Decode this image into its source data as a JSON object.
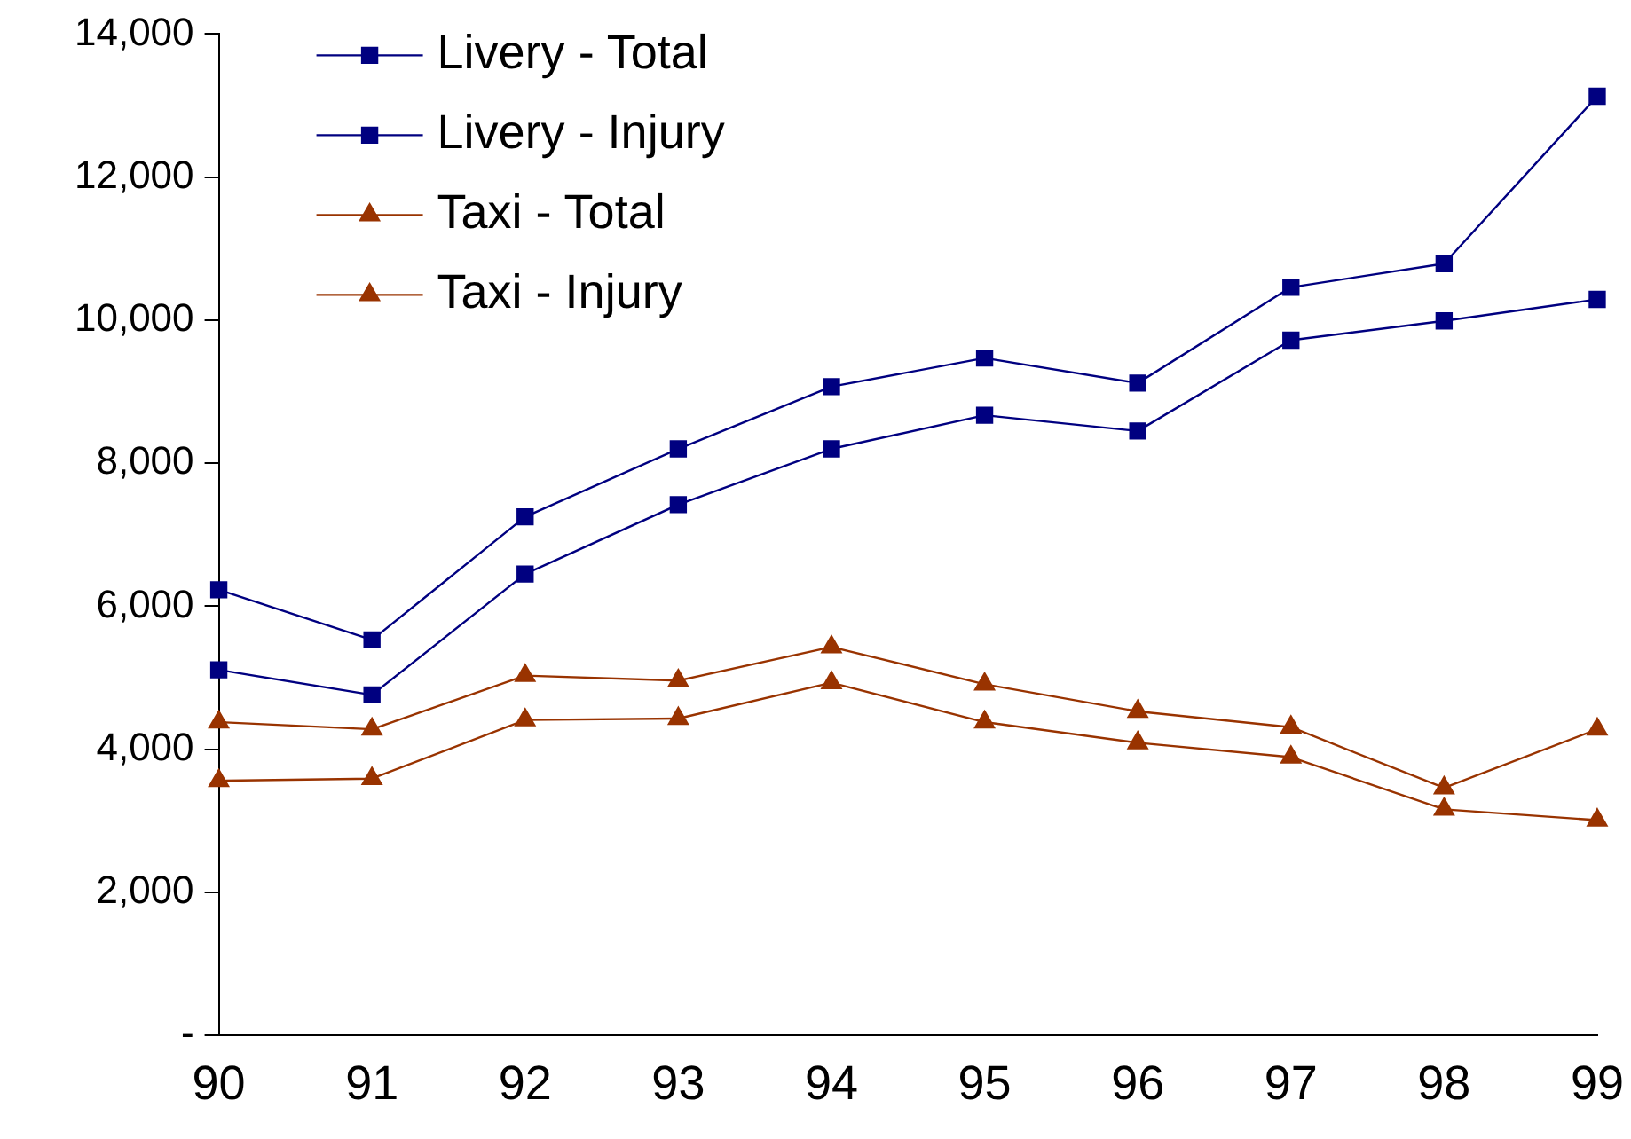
{
  "chart_data": {
    "type": "line",
    "categories": [
      "90",
      "91",
      "92",
      "93",
      "94",
      "95",
      "96",
      "97",
      "98",
      "99"
    ],
    "series": [
      {
        "name": "Livery - Total",
        "color": "#000080",
        "marker": "square",
        "values": [
          6230,
          5530,
          7250,
          8200,
          9070,
          9470,
          9120,
          10460,
          10790,
          13130
        ]
      },
      {
        "name": "Livery - Injury",
        "color": "#000080",
        "marker": "square",
        "values": [
          5110,
          4760,
          6450,
          7420,
          8200,
          8670,
          8450,
          9720,
          9990,
          10290
        ]
      },
      {
        "name": "Taxi - Total",
        "color": "#993300",
        "marker": "triangle",
        "values": [
          4380,
          4280,
          5030,
          4960,
          5430,
          4910,
          4530,
          4310,
          3460,
          4280
        ]
      },
      {
        "name": "Taxi - Injury",
        "color": "#993300",
        "marker": "triangle",
        "values": [
          3560,
          3590,
          4410,
          4430,
          4930,
          4380,
          4090,
          3890,
          3160,
          3010
        ]
      }
    ],
    "ylim": [
      0,
      14000
    ],
    "yticks": [
      {
        "value": 0,
        "label": "-"
      },
      {
        "value": 2000,
        "label": "2,000"
      },
      {
        "value": 4000,
        "label": "4,000"
      },
      {
        "value": 6000,
        "label": "6,000"
      },
      {
        "value": 8000,
        "label": "8,000"
      },
      {
        "value": 10000,
        "label": "10,000"
      },
      {
        "value": 12000,
        "label": "12,000"
      },
      {
        "value": 14000,
        "label": "14,000"
      }
    ],
    "grid": false,
    "legend": "top left",
    "line_style": "solid"
  }
}
